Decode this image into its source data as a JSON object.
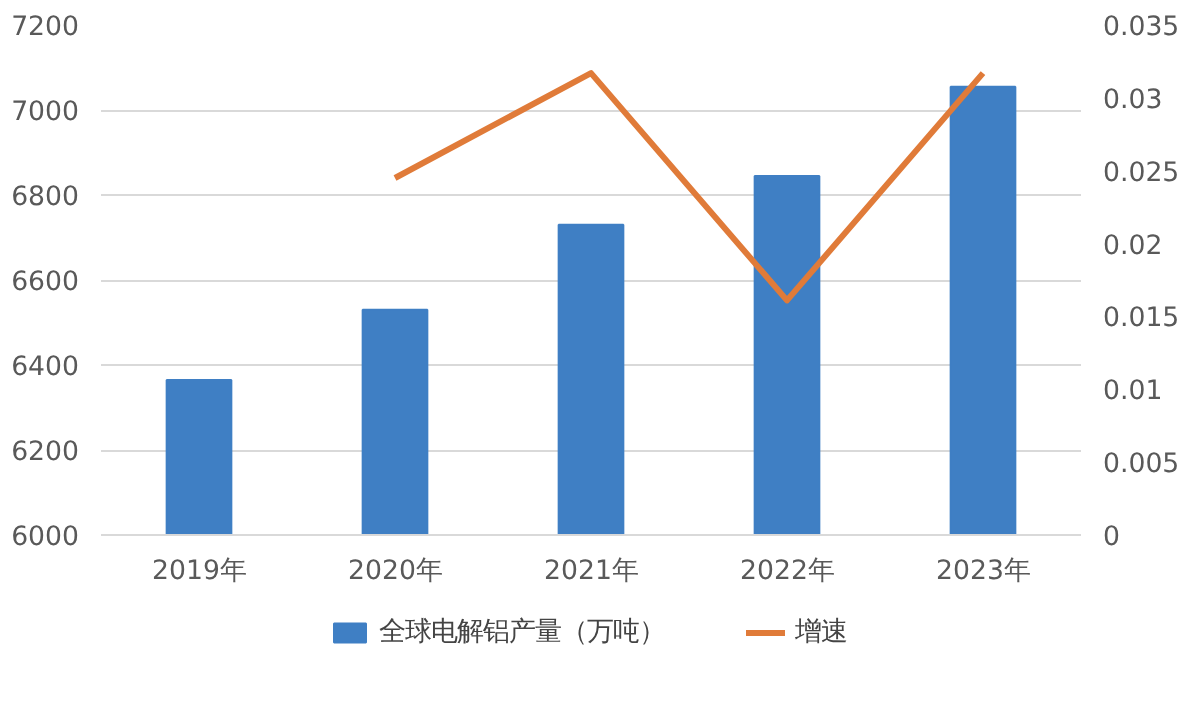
{
  "chart_data": {
    "type": "bar",
    "categories": [
      "2019年",
      "2020年",
      "2021年",
      "2022年",
      "2023年"
    ],
    "series": [
      {
        "name": "全球电解铝产量（万吨）",
        "type": "bar",
        "color": "#3f7fc4",
        "values": [
          6365,
          6530,
          6730,
          6845,
          7055
        ]
      },
      {
        "name": "增速",
        "type": "line",
        "axis": "y2",
        "color": "#e07b39",
        "values": [
          null,
          0.0245,
          0.0317,
          0.0161,
          0.0317
        ]
      }
    ],
    "ylim": [
      6000,
      7200
    ],
    "yticks": [
      6000,
      6200,
      6400,
      6600,
      6800,
      7000,
      7200
    ],
    "y2lim": [
      0,
      0.035
    ],
    "y2ticks": [
      0,
      0.005,
      0.01,
      0.015,
      0.02,
      0.025,
      0.03,
      0.035
    ],
    "grid": "y",
    "legend": "bottom",
    "marker": "none",
    "line_style": "solid"
  }
}
